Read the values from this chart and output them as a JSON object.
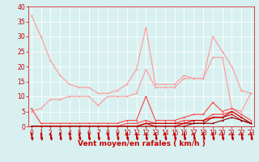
{
  "x": [
    0,
    1,
    2,
    3,
    4,
    5,
    6,
    7,
    8,
    9,
    10,
    11,
    12,
    13,
    14,
    15,
    16,
    17,
    18,
    19,
    20,
    21,
    22,
    23
  ],
  "series": [
    {
      "color": "#ff9999",
      "linewidth": 0.8,
      "markersize": 2.0,
      "y": [
        37,
        30,
        22,
        17,
        14,
        13,
        13,
        11,
        11,
        12,
        14,
        19,
        33,
        14,
        14,
        14,
        17,
        16,
        16,
        30,
        25,
        20,
        12,
        11
      ]
    },
    {
      "color": "#ff9999",
      "linewidth": 0.8,
      "markersize": 2.0,
      "y": [
        5,
        6,
        9,
        9,
        10,
        10,
        10,
        7,
        10,
        10,
        10,
        11,
        19,
        13,
        13,
        13,
        16,
        16,
        16,
        23,
        23,
        6,
        5,
        11
      ]
    },
    {
      "color": "#ff4444",
      "linewidth": 0.8,
      "markersize": 2.0,
      "y": [
        6,
        1,
        1,
        1,
        1,
        1,
        1,
        1,
        1,
        1,
        2,
        2,
        10,
        2,
        2,
        2,
        3,
        4,
        4,
        8,
        5,
        6,
        4,
        2
      ]
    },
    {
      "color": "#ff4444",
      "linewidth": 0.8,
      "markersize": 2.0,
      "y": [
        0,
        0,
        0,
        0,
        0,
        0,
        0,
        0,
        0,
        0,
        1,
        1,
        2,
        1,
        1,
        1,
        2,
        2,
        2,
        4,
        4,
        5,
        3,
        1
      ]
    },
    {
      "color": "#cc0000",
      "linewidth": 0.8,
      "markersize": 2.0,
      "y": [
        0,
        0,
        0,
        0,
        0,
        0,
        0,
        0,
        0,
        0,
        0,
        0,
        1,
        1,
        1,
        1,
        1,
        2,
        2,
        3,
        3,
        5,
        3,
        1
      ]
    },
    {
      "color": "#cc0000",
      "linewidth": 0.8,
      "markersize": 2.0,
      "y": [
        0,
        0,
        0,
        0,
        0,
        0,
        0,
        0,
        0,
        0,
        0,
        0,
        1,
        0,
        0,
        0,
        1,
        1,
        1,
        3,
        3,
        4,
        2,
        1
      ]
    },
    {
      "color": "#880000",
      "linewidth": 0.8,
      "markersize": 2.0,
      "y": [
        0,
        0,
        0,
        0,
        0,
        0,
        0,
        0,
        0,
        0,
        0,
        0,
        0,
        0,
        0,
        0,
        0,
        1,
        1,
        1,
        2,
        3,
        2,
        1
      ]
    }
  ],
  "xlim": [
    -0.3,
    23.3
  ],
  "ylim": [
    0,
    40
  ],
  "yticks": [
    0,
    5,
    10,
    15,
    20,
    25,
    30,
    35,
    40
  ],
  "xticks": [
    0,
    1,
    2,
    3,
    4,
    5,
    6,
    7,
    8,
    9,
    10,
    11,
    12,
    13,
    14,
    15,
    16,
    17,
    18,
    19,
    20,
    21,
    22,
    23
  ],
  "xlabel": "Vent moyen/en rafales ( km/h )",
  "xlabel_color": "#cc0000",
  "background_color": "#d8f0f0",
  "grid_color": "#ffffff",
  "tick_color": "#cc0000",
  "tick_labelsize": 5.5,
  "xlabel_fontsize": 6.5,
  "arrow_color": "#cc0000",
  "spine_color": "#cc0000"
}
